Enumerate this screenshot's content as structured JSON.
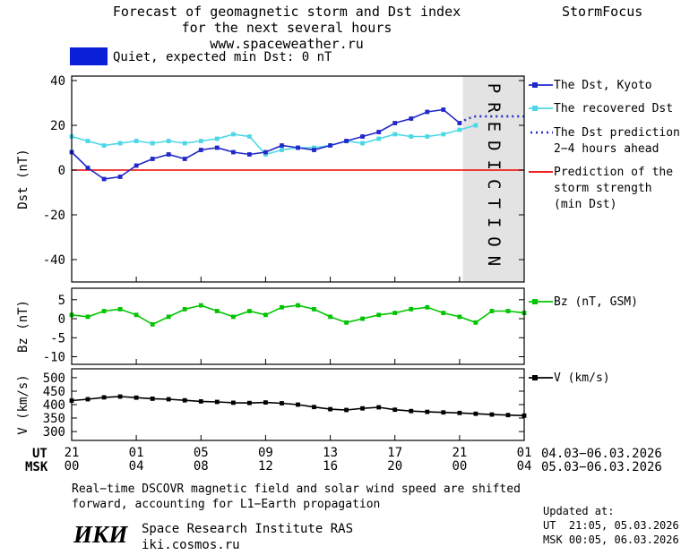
{
  "header": {
    "title_line1": "Forecast of geomagnetic storm and Dst index",
    "title_line2": "for the next several hours",
    "title_line3": "www.spaceweather.ru",
    "brand": "StormFocus"
  },
  "status": {
    "label": "Quiet, expected min Dst: 0 nT"
  },
  "colors": {
    "status_box": "#0a1fd8",
    "band_fill": "#e3e3e3",
    "band_text": "#c2c2c2"
  },
  "prediction_band": {
    "label": "PREDICTION",
    "start_hour": 24.2,
    "end_hour": 28
  },
  "legend": {
    "dst_items": [
      "The Dst, Kyoto",
      "The recovered Dst",
      "The Dst prediction",
      "2−4 hours ahead"
    ],
    "storm_lines": [
      "Prediction of the",
      "storm strength",
      "(min Dst)"
    ],
    "bz_label": "Bz (nT, GSM)",
    "v_label": "V (km/s)"
  },
  "xaxis": {
    "hour_span": 28,
    "tick_hours": [
      0,
      4,
      8,
      12,
      16,
      20,
      24,
      28
    ],
    "ut_ticks": [
      "21",
      "01",
      "05",
      "09",
      "13",
      "17",
      "21",
      "01"
    ],
    "msk_ticks": [
      "00",
      "04",
      "08",
      "12",
      "16",
      "20",
      "00",
      "04"
    ],
    "ut_label": "UT",
    "msk_label": "MSK",
    "ut_date": "04.03−06.03.2026",
    "msk_date": "05.03−06.03.2026"
  },
  "chart_data": [
    {
      "type": "line",
      "ylabel": "Dst (nT)",
      "ylim": [
        -50,
        42
      ],
      "yticks": [
        40,
        20,
        0,
        -20,
        -40
      ],
      "series": [
        {
          "id": "dst-kyoto",
          "name": "The Dst, Kyoto",
          "color": "#2228c8",
          "style": "solid",
          "marker": "square",
          "x": [
            0,
            1,
            2,
            3,
            4,
            5,
            6,
            7,
            8,
            9,
            10,
            11,
            12,
            13,
            14,
            15,
            16,
            17,
            18,
            19,
            20,
            21,
            22,
            23,
            24
          ],
          "values": [
            8,
            1,
            -4,
            -3,
            2,
            5,
            7,
            5,
            9,
            10,
            8,
            7,
            8,
            11,
            10,
            9,
            11,
            13,
            15,
            17,
            21,
            23,
            26,
            27,
            21
          ]
        },
        {
          "id": "dst-recovered",
          "name": "The recovered Dst",
          "color": "#4cd7e6",
          "style": "solid",
          "marker": "square",
          "x": [
            0,
            1,
            2,
            3,
            4,
            5,
            6,
            7,
            8,
            9,
            10,
            11,
            12,
            13,
            14,
            15,
            16,
            17,
            18,
            19,
            20,
            21,
            22,
            23,
            24,
            25
          ],
          "values": [
            15,
            13,
            11,
            12,
            13,
            12,
            13,
            12,
            13,
            14,
            16,
            15,
            7,
            9,
            10,
            10,
            11,
            13,
            12,
            14,
            16,
            15,
            15,
            16,
            18,
            20
          ]
        },
        {
          "id": "dst-prediction",
          "name": "The Dst prediction 2−4 hours ahead",
          "color": "#2228c8",
          "style": "dotted",
          "marker": "none",
          "x": [
            24,
            24.5,
            25,
            25.5,
            26,
            26.5,
            27,
            27.5,
            28
          ],
          "values": [
            21,
            23,
            24,
            24,
            24,
            24,
            24,
            24,
            24
          ]
        },
        {
          "id": "storm-strength",
          "name": "Prediction of the storm strength (min Dst)",
          "color": "#ee0000",
          "style": "solid",
          "marker": "none",
          "x": [
            0,
            28
          ],
          "values": [
            0,
            0
          ]
        }
      ]
    },
    {
      "type": "line",
      "ylabel": "Bz (nT)",
      "ylim": [
        -12,
        8
      ],
      "yticks": [
        5,
        0,
        -5,
        -10
      ],
      "series": [
        {
          "id": "bz",
          "name": "Bz (nT, GSM)",
          "color": "#00c400",
          "style": "solid",
          "marker": "square",
          "x": [
            0,
            1,
            2,
            3,
            4,
            5,
            6,
            7,
            8,
            9,
            10,
            11,
            12,
            13,
            14,
            15,
            16,
            17,
            18,
            19,
            20,
            21,
            22,
            23,
            24,
            25,
            26,
            27,
            28
          ],
          "values": [
            1,
            0.5,
            2,
            2.5,
            1,
            -1.5,
            0.5,
            2.5,
            3.5,
            2,
            0.5,
            2,
            1,
            3,
            3.5,
            2.5,
            0.5,
            -1,
            0,
            1,
            1.5,
            2.5,
            3,
            1.5,
            0.5,
            -1,
            2,
            2,
            1.5
          ]
        }
      ]
    },
    {
      "type": "line",
      "ylabel": "V (km/s)",
      "ylim": [
        267,
        533
      ],
      "yticks": [
        500,
        450,
        400,
        350,
        300
      ],
      "series": [
        {
          "id": "v",
          "name": "V (km/s)",
          "color": "#000000",
          "style": "solid",
          "marker": "square",
          "x": [
            0,
            1,
            2,
            3,
            4,
            5,
            6,
            7,
            8,
            9,
            10,
            11,
            12,
            13,
            14,
            15,
            16,
            17,
            18,
            19,
            20,
            21,
            22,
            23,
            24,
            25,
            26,
            27,
            28
          ],
          "values": [
            415,
            420,
            427,
            430,
            426,
            422,
            420,
            416,
            412,
            410,
            407,
            406,
            408,
            405,
            400,
            391,
            383,
            380,
            386,
            390,
            381,
            376,
            373,
            371,
            369,
            366,
            363,
            361,
            359
          ]
        }
      ]
    }
  ],
  "footer": {
    "note_line1": "Real−time DSCOVR magnetic field and solar wind speed are shifted",
    "note_line2": "forward, accounting for L1−Earth propagation",
    "updated_label": "Updated at:",
    "updated_ut": "UT  21:05, 05.03.2026",
    "updated_msk": "MSK 00:05, 06.03.2026",
    "logo": "ИКИ",
    "institute": "Space Research Institute RAS",
    "site": "iki.cosmos.ru"
  }
}
